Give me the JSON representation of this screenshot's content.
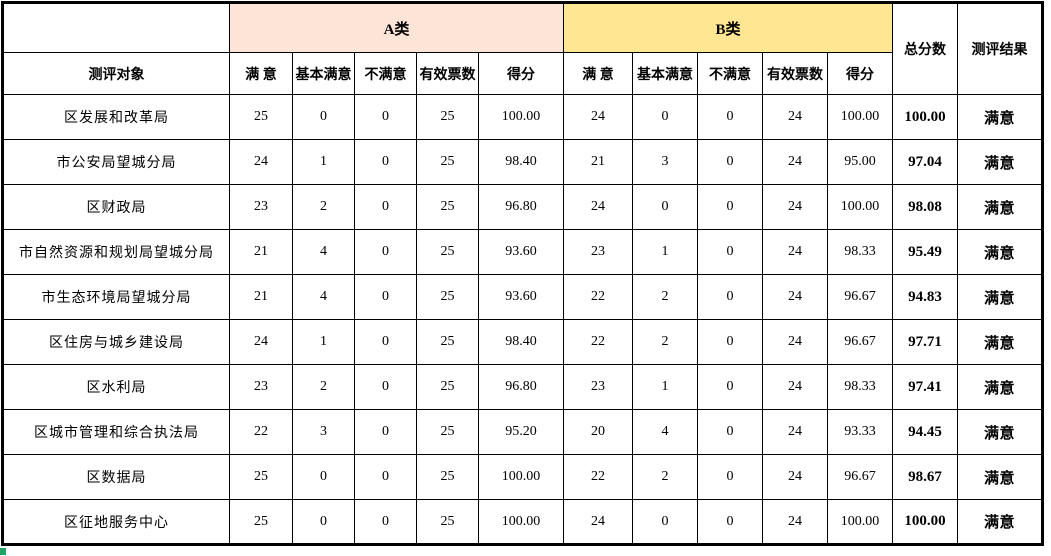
{
  "table": {
    "corner_label": "",
    "object_label": "测评对象",
    "group_a_label": "A类",
    "group_b_label": "B类",
    "total_score_label": "总分数",
    "result_label": "测评结果",
    "sub_headers": [
      "满 意",
      "基本满意",
      "不满意",
      "有效票数",
      "得分"
    ],
    "rows": [
      [
        "区发展和改革局",
        "25",
        "0",
        "0",
        "25",
        "100.00",
        "24",
        "0",
        "0",
        "24",
        "100.00",
        "100.00",
        "满意"
      ],
      [
        "市公安局望城分局",
        "24",
        "1",
        "0",
        "25",
        "98.40",
        "21",
        "3",
        "0",
        "24",
        "95.00",
        "97.04",
        "满意"
      ],
      [
        "区财政局",
        "23",
        "2",
        "0",
        "25",
        "96.80",
        "24",
        "0",
        "0",
        "24",
        "100.00",
        "98.08",
        "满意"
      ],
      [
        "市自然资源和规划局望城分局",
        "21",
        "4",
        "0",
        "25",
        "93.60",
        "23",
        "1",
        "0",
        "24",
        "98.33",
        "95.49",
        "满意"
      ],
      [
        "市生态环境局望城分局",
        "21",
        "4",
        "0",
        "25",
        "93.60",
        "22",
        "2",
        "0",
        "24",
        "96.67",
        "94.83",
        "满意"
      ],
      [
        "区住房与城乡建设局",
        "24",
        "1",
        "0",
        "25",
        "98.40",
        "22",
        "2",
        "0",
        "24",
        "96.67",
        "97.71",
        "满意"
      ],
      [
        "区水利局",
        "23",
        "2",
        "0",
        "25",
        "96.80",
        "23",
        "1",
        "0",
        "24",
        "98.33",
        "97.41",
        "满意"
      ],
      [
        "区城市管理和综合执法局",
        "22",
        "3",
        "0",
        "25",
        "95.20",
        "20",
        "4",
        "0",
        "24",
        "93.33",
        "94.45",
        "满意"
      ],
      [
        "区数据局",
        "25",
        "0",
        "0",
        "25",
        "100.00",
        "22",
        "2",
        "0",
        "24",
        "96.67",
        "98.67",
        "满意"
      ],
      [
        "区征地服务中心",
        "25",
        "0",
        "0",
        "25",
        "100.00",
        "24",
        "0",
        "0",
        "24",
        "100.00",
        "100.00",
        "满意"
      ]
    ]
  },
  "colors": {
    "group_a_bg": "#FCE4D6",
    "group_b_bg": "#FFE693",
    "border": "#000000",
    "fill_handle": "#21A366"
  }
}
